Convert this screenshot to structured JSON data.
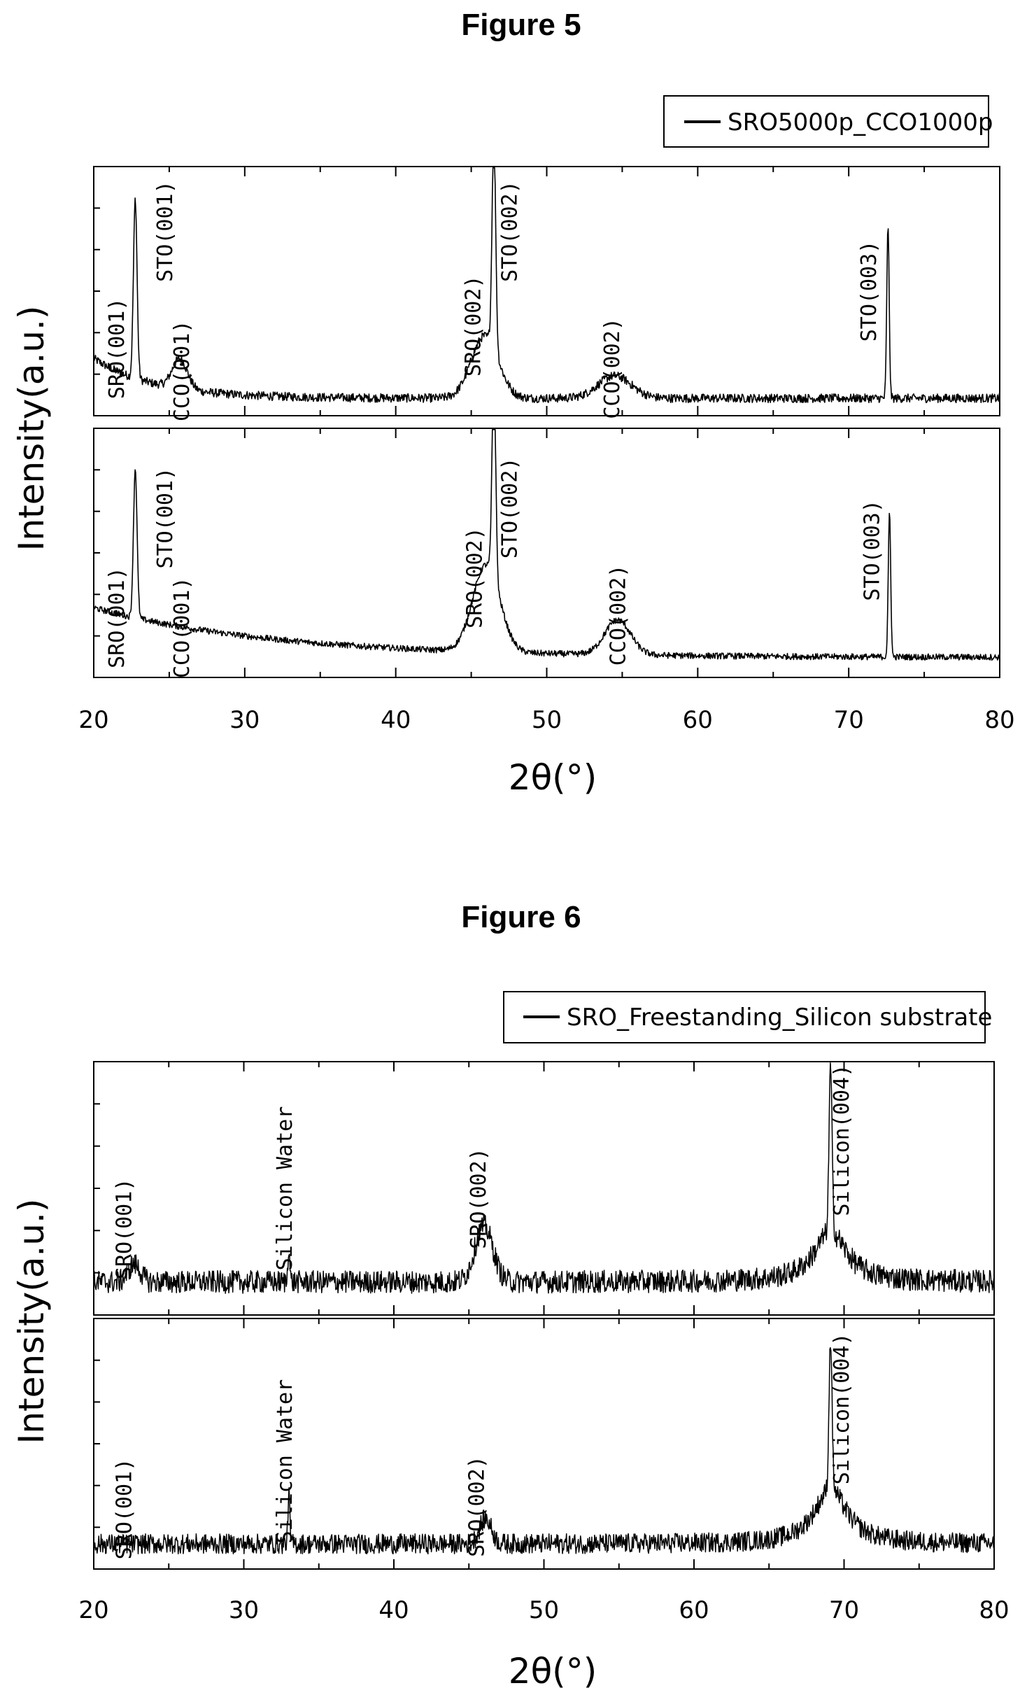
{
  "chart_data": [
    {
      "title": "Figure 5",
      "type": "line",
      "xlabel": "2θ(°)",
      "ylabel": "Intensity(a.u.)",
      "xlim": [
        20,
        80
      ],
      "xticks": [
        20,
        30,
        40,
        50,
        60,
        70,
        80
      ],
      "legend": {
        "label": "SRO5000p_CCO1000p",
        "position": "top-right"
      },
      "panels": [
        {
          "series": {
            "x_range": [
              20,
              80
            ],
            "baseline": 0.07,
            "decay": {
              "amp": 0.16,
              "tau": 4
            }
          },
          "peaks": [
            {
              "x": 22.75,
              "height": 0.72,
              "width": 0.12
            },
            {
              "x": 25.7,
              "height": 0.12,
              "width": 0.5
            },
            {
              "x": 45.9,
              "height": 0.25,
              "width": 0.9
            },
            {
              "x": 46.5,
              "height": 0.86,
              "width": 0.12
            },
            {
              "x": 54.5,
              "height": 0.09,
              "width": 1.1
            },
            {
              "x": 72.6,
              "height": 0.68,
              "width": 0.08
            }
          ],
          "labels": [
            {
              "text": "SRO(001)",
              "x": 22.0,
              "y": 0.27
            },
            {
              "text": "STO(001)",
              "x": 25.2,
              "y": 0.74
            },
            {
              "text": "CCO(001)",
              "x": 26.3,
              "y": 0.18
            },
            {
              "text": "SRO(002)",
              "x": 45.6,
              "y": 0.36
            },
            {
              "text": "STO(002)",
              "x": 48.0,
              "y": 0.74
            },
            {
              "text": "CCO(002)",
              "x": 54.8,
              "y": 0.19
            },
            {
              "text": "STO(003)",
              "x": 71.8,
              "y": 0.5
            }
          ]
        },
        {
          "series": {
            "x_range": [
              20,
              80
            ],
            "baseline": 0.08,
            "decay": {
              "amp": 0.2,
              "tau": 12
            }
          },
          "peaks": [
            {
              "x": 22.75,
              "height": 0.6,
              "width": 0.12
            },
            {
              "x": 46.0,
              "height": 0.35,
              "width": 0.9
            },
            {
              "x": 46.5,
              "height": 0.83,
              "width": 0.12
            },
            {
              "x": 54.7,
              "height": 0.14,
              "width": 0.85
            },
            {
              "x": 72.7,
              "height": 0.58,
              "width": 0.08
            }
          ],
          "labels": [
            {
              "text": "SRO(001)",
              "x": 22.0,
              "y": 0.24
            },
            {
              "text": "STO(001)",
              "x": 25.2,
              "y": 0.64
            },
            {
              "text": "CCO(001)",
              "x": 26.3,
              "y": 0.2
            },
            {
              "text": "SRO(002)",
              "x": 45.7,
              "y": 0.4
            },
            {
              "text": "STO(002)",
              "x": 48.0,
              "y": 0.68
            },
            {
              "text": "CCO(002)",
              "x": 55.2,
              "y": 0.25
            },
            {
              "text": "STO(003)",
              "x": 72.0,
              "y": 0.51
            }
          ]
        }
      ]
    },
    {
      "title": "Figure 6",
      "type": "line",
      "xlabel": "2θ(°)",
      "ylabel": "Intensity(a.u.)",
      "xlim": [
        20,
        80
      ],
      "xticks": [
        20,
        30,
        40,
        50,
        60,
        70,
        80
      ],
      "legend": {
        "label": "SRO_Freestanding_Silicon substrate",
        "position": "top-right"
      },
      "panels": [
        {
          "series": {
            "x_range": [
              20,
              80
            ],
            "baseline": 0.13,
            "decay": {
              "amp": 0,
              "tau": 1
            }
          },
          "peaks": [
            {
              "x": 22.7,
              "height": 0.07,
              "width": 0.4
            },
            {
              "x": 33.0,
              "height": 0.15,
              "width": 0.06
            },
            {
              "x": 46.0,
              "height": 0.22,
              "width": 0.6
            },
            {
              "x": 69.1,
              "height": 0.65,
              "width": 0.1
            }
          ],
          "lorentz": [
            {
              "x": 69.1,
              "height": 0.2,
              "gamma": 1.3
            }
          ],
          "labels": [
            {
              "text": "SRO(001)",
              "x": 22.5,
              "y": 0.34
            },
            {
              "text": "Silicon Water",
              "x": 33.2,
              "y": 0.5
            },
            {
              "text": "SRO(002)",
              "x": 46.1,
              "y": 0.46
            },
            {
              "text": "Silicon(004)",
              "x": 70.3,
              "y": 0.69
            }
          ]
        },
        {
          "series": {
            "x_range": [
              20,
              80
            ],
            "baseline": 0.1,
            "decay": {
              "amp": 0,
              "tau": 1
            }
          },
          "peaks": [
            {
              "x": 33.0,
              "height": 0.2,
              "width": 0.06
            },
            {
              "x": 46.1,
              "height": 0.1,
              "width": 0.4
            },
            {
              "x": 69.1,
              "height": 0.6,
              "width": 0.1
            }
          ],
          "lorentz": [
            {
              "x": 69.1,
              "height": 0.22,
              "gamma": 1.3
            }
          ],
          "labels": [
            {
              "text": "SRO(001)",
              "x": 22.5,
              "y": 0.24
            },
            {
              "text": "Silicon Water",
              "x": 33.2,
              "y": 0.43
            },
            {
              "text": "SRO(002)",
              "x": 46.0,
              "y": 0.25
            },
            {
              "text": "Silicon(004)",
              "x": 70.3,
              "y": 0.64
            }
          ]
        }
      ]
    }
  ]
}
